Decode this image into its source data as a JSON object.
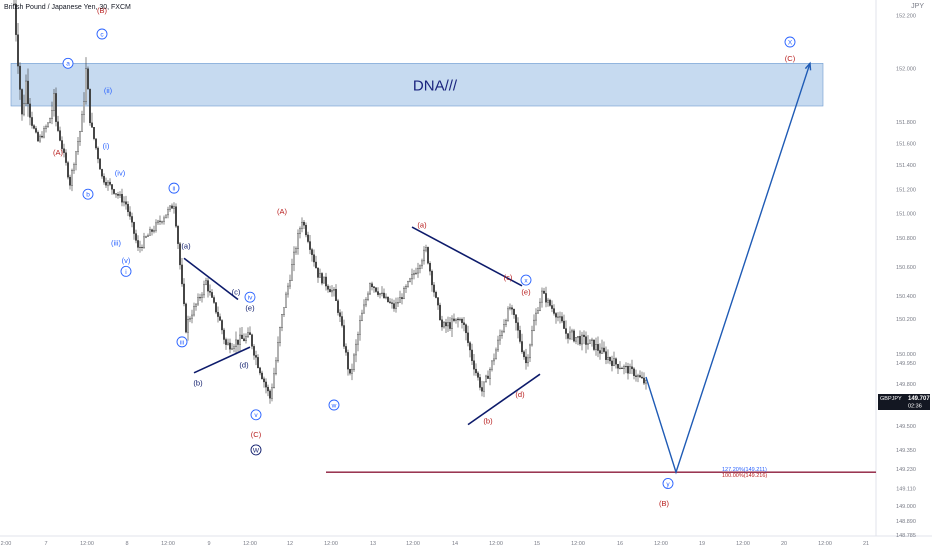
{
  "header": {
    "title": "British Pound / Japanese Yen, 30, FXCM",
    "currency": "JPY"
  },
  "zone_label": "DNA///",
  "price_tag": {
    "symbol": "GBPJPY",
    "price": "149.707",
    "countdown": "02:36"
  },
  "fib_labels": [
    "127.20%(149.211)",
    "100.00%(149.216)"
  ],
  "colors": {
    "up_candle": "#26a69a",
    "candle": "#3a3a3a",
    "wave_blue": "#2962ff",
    "wave_red": "#b71c1c",
    "navy": "#0d1b6b",
    "zone_fill": "#b3cdeb",
    "fib_line": "#8b1a3a",
    "projection": "#1f5bb5"
  },
  "chart_data": {
    "type": "candlestick",
    "x_ticks": [
      "2:00",
      "7",
      "12:00",
      "8",
      "12:00",
      "9",
      "12:00",
      "12",
      "12:00",
      "13",
      "12:00",
      "14",
      "12:00",
      "15",
      "12:00",
      "16",
      "12:00",
      "19",
      "12:00",
      "20",
      "12:00",
      "21"
    ],
    "y_ticks": [
      "152.200",
      "152.000",
      "151.800",
      "151.600",
      "151.400",
      "151.200",
      "151.000",
      "150.800",
      "150.600",
      "150.400",
      "150.200",
      "150.000",
      "149.950",
      "149.800",
      "149.650",
      "149.500",
      "149.350",
      "149.230",
      "149.110",
      "149.000",
      "148.890",
      "148.785"
    ],
    "price_path_key_points": [
      {
        "t": 0,
        "p": 152.25
      },
      {
        "t": 4,
        "p": 151.82
      },
      {
        "t": 6,
        "p": 151.95
      },
      {
        "t": 12,
        "p": 151.62
      },
      {
        "t": 20,
        "p": 151.88
      },
      {
        "t": 28,
        "p": 151.25
      },
      {
        "t": 36,
        "p": 151.99
      },
      {
        "t": 44,
        "p": 151.3
      },
      {
        "t": 56,
        "p": 151.08
      },
      {
        "t": 62,
        "p": 150.72
      },
      {
        "t": 72,
        "p": 150.92
      },
      {
        "t": 80,
        "p": 151.08
      },
      {
        "t": 86,
        "p": 150.15
      },
      {
        "t": 96,
        "p": 150.5
      },
      {
        "t": 106,
        "p": 150.05
      },
      {
        "t": 118,
        "p": 150.1
      },
      {
        "t": 128,
        "p": 149.7
      },
      {
        "t": 136,
        "p": 150.4
      },
      {
        "t": 144,
        "p": 150.95
      },
      {
        "t": 152,
        "p": 150.55
      },
      {
        "t": 160,
        "p": 150.42
      },
      {
        "t": 168,
        "p": 149.85
      },
      {
        "t": 178,
        "p": 150.5
      },
      {
        "t": 190,
        "p": 150.3
      },
      {
        "t": 198,
        "p": 150.5
      },
      {
        "t": 206,
        "p": 150.72
      },
      {
        "t": 214,
        "p": 150.15
      },
      {
        "t": 224,
        "p": 150.2
      },
      {
        "t": 234,
        "p": 149.75
      },
      {
        "t": 248,
        "p": 150.3
      },
      {
        "t": 256,
        "p": 149.95
      },
      {
        "t": 264,
        "p": 150.42
      },
      {
        "t": 276,
        "p": 150.12
      },
      {
        "t": 290,
        "p": 150.05
      },
      {
        "t": 300,
        "p": 149.95
      },
      {
        "t": 310,
        "p": 149.88
      },
      {
        "t": 316,
        "p": 149.8
      }
    ],
    "dna_zone": {
      "top": 152.02,
      "bottom": 151.86,
      "label": "DNA///"
    },
    "fib_level": 149.21,
    "projection": [
      {
        "t": 316,
        "p": 149.85
      },
      {
        "t": 331,
        "p": 149.21
      },
      {
        "t": 398,
        "p": 152.02
      }
    ],
    "lines": [
      {
        "from": {
          "t": 85,
          "p": 150.66
        },
        "to": {
          "t": 112,
          "p": 150.37
        },
        "color": "navy"
      },
      {
        "from": {
          "t": 90,
          "p": 149.88
        },
        "to": {
          "t": 118,
          "p": 150.04
        },
        "color": "navy"
      },
      {
        "from": {
          "t": 199,
          "p": 150.89
        },
        "to": {
          "t": 254,
          "p": 150.47
        },
        "color": "navy"
      },
      {
        "from": {
          "t": 227,
          "p": 149.51
        },
        "to": {
          "t": 263,
          "p": 149.87
        },
        "color": "navy"
      }
    ],
    "annotations": [
      {
        "text": "(B)",
        "t": 44,
        "p": 152.22,
        "color": "red",
        "style": "plain"
      },
      {
        "text": "c",
        "t": 44,
        "p": 152.13,
        "color": "blue",
        "style": "circle"
      },
      {
        "text": "a",
        "t": 27,
        "p": 152.02,
        "color": "blue",
        "style": "circle"
      },
      {
        "text": "(ii)",
        "t": 47,
        "p": 151.92,
        "color": "blue",
        "style": "plain"
      },
      {
        "text": "(i)",
        "t": 46,
        "p": 151.58,
        "color": "blue",
        "style": "plain"
      },
      {
        "text": "(A)",
        "t": 22,
        "p": 151.52,
        "color": "red",
        "style": "plain"
      },
      {
        "text": "(iv)",
        "t": 53,
        "p": 151.34,
        "color": "blue",
        "style": "plain"
      },
      {
        "text": "b",
        "t": 37,
        "p": 151.16,
        "color": "blue",
        "style": "circle"
      },
      {
        "text": "ii",
        "t": 80,
        "p": 151.21,
        "color": "blue",
        "style": "circle"
      },
      {
        "text": "(iii)",
        "t": 51,
        "p": 150.77,
        "color": "blue",
        "style": "plain"
      },
      {
        "text": "(v)",
        "t": 56,
        "p": 150.65,
        "color": "blue",
        "style": "plain"
      },
      {
        "text": "i",
        "t": 56,
        "p": 150.57,
        "color": "blue",
        "style": "circle"
      },
      {
        "text": "(a)",
        "t": 86,
        "p": 150.75,
        "color": "navy",
        "style": "plain"
      },
      {
        "text": "(c)",
        "t": 111,
        "p": 150.43,
        "color": "navy",
        "style": "plain"
      },
      {
        "text": "iv",
        "t": 118,
        "p": 150.39,
        "color": "blue",
        "style": "circle"
      },
      {
        "text": "(e)",
        "t": 118,
        "p": 150.3,
        "color": "navy",
        "style": "plain"
      },
      {
        "text": "iii",
        "t": 84,
        "p": 150.07,
        "color": "blue",
        "style": "circle"
      },
      {
        "text": "(d)",
        "t": 115,
        "p": 149.94,
        "color": "navy",
        "style": "plain"
      },
      {
        "text": "(b)",
        "t": 92,
        "p": 149.81,
        "color": "navy",
        "style": "plain"
      },
      {
        "text": "v",
        "t": 121,
        "p": 149.58,
        "color": "blue",
        "style": "circle"
      },
      {
        "text": "(C)",
        "t": 121,
        "p": 149.45,
        "color": "red",
        "style": "plain"
      },
      {
        "text": "W",
        "t": 121,
        "p": 149.35,
        "color": "navy",
        "style": "circle"
      },
      {
        "text": "(A)",
        "t": 134,
        "p": 151.02,
        "color": "red",
        "style": "plain"
      },
      {
        "text": "w",
        "t": 160,
        "p": 149.65,
        "color": "blue",
        "style": "circle"
      },
      {
        "text": "(a)",
        "t": 204,
        "p": 150.91,
        "color": "red",
        "style": "plain"
      },
      {
        "text": "(c)",
        "t": 247,
        "p": 150.53,
        "color": "red",
        "style": "plain"
      },
      {
        "text": "x",
        "t": 256,
        "p": 150.51,
        "color": "blue",
        "style": "circle"
      },
      {
        "text": "(e)",
        "t": 256,
        "p": 150.43,
        "color": "red",
        "style": "plain"
      },
      {
        "text": "(d)",
        "t": 253,
        "p": 149.73,
        "color": "red",
        "style": "plain"
      },
      {
        "text": "(b)",
        "t": 237,
        "p": 149.54,
        "color": "red",
        "style": "plain"
      },
      {
        "text": "y",
        "t": 327,
        "p": 149.14,
        "color": "blue",
        "style": "circle"
      },
      {
        "text": "(B)",
        "t": 325,
        "p": 149.02,
        "color": "red",
        "style": "plain"
      },
      {
        "text": "X",
        "t": 388,
        "p": 152.1,
        "color": "blue",
        "style": "circle"
      },
      {
        "text": "(C)",
        "t": 388,
        "p": 152.04,
        "color": "red",
        "style": "plain"
      }
    ]
  }
}
